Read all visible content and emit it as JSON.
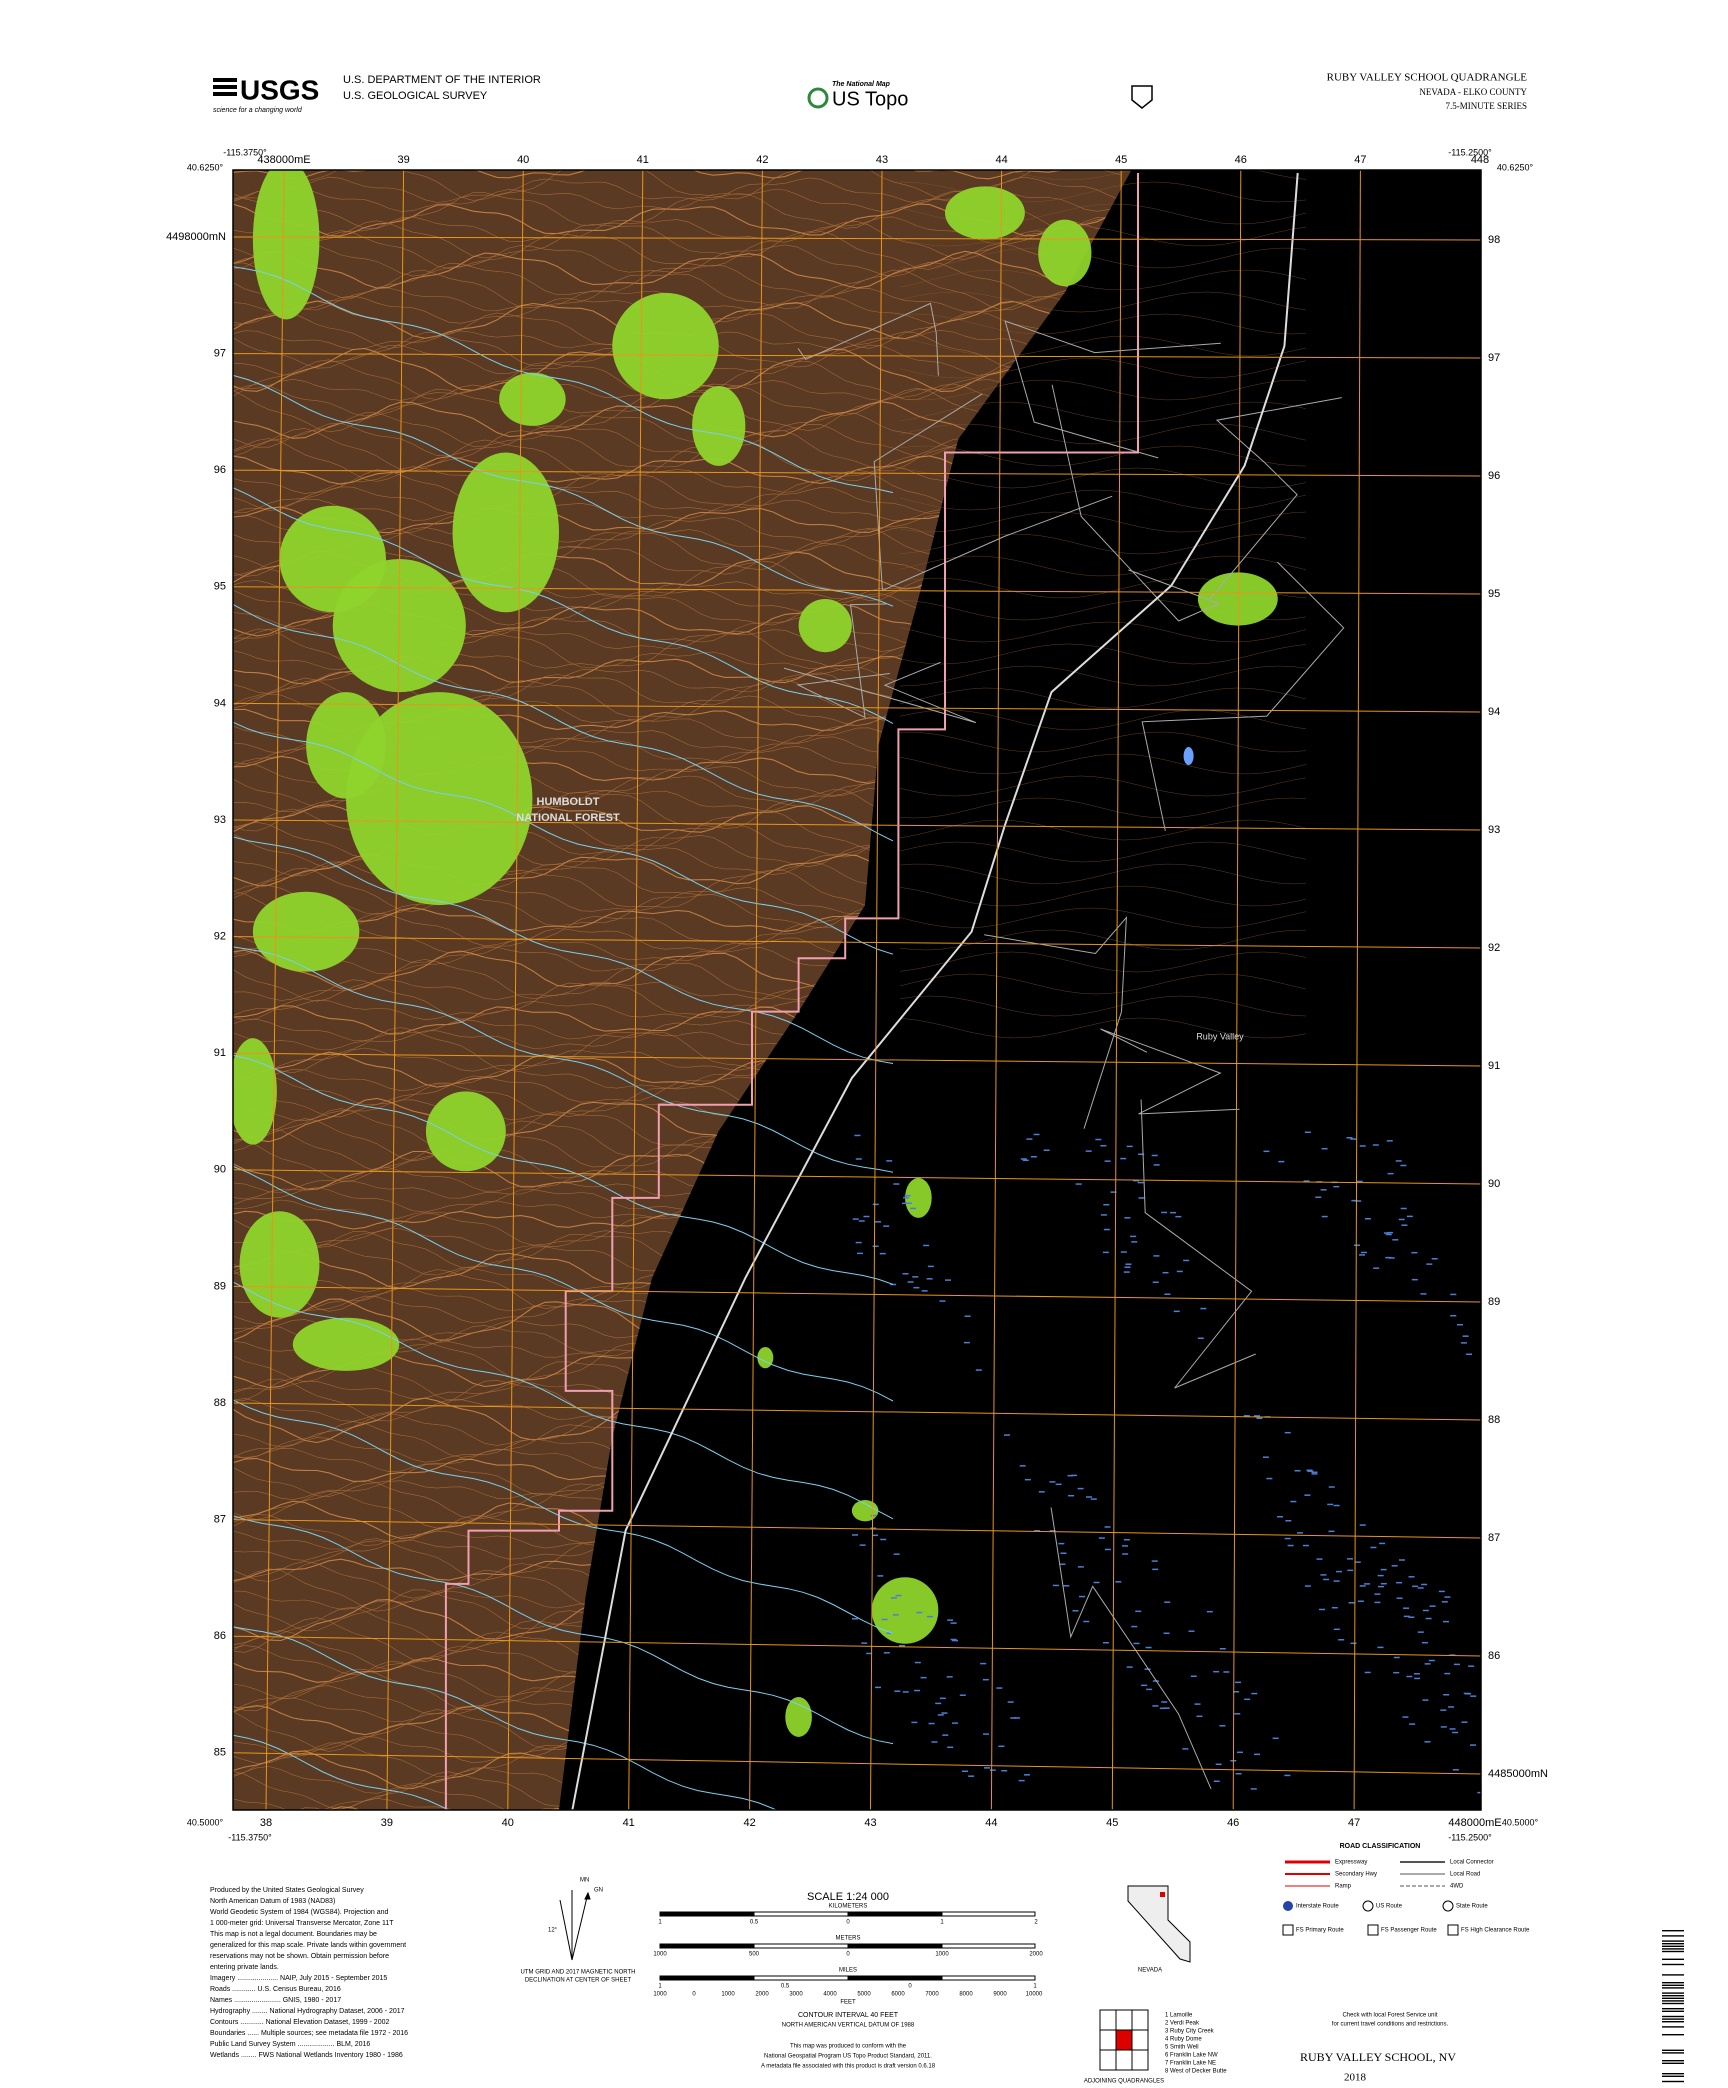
{
  "header": {
    "logo": "USGS",
    "logo_tagline": "science for a changing world",
    "agency_line1": "U.S. DEPARTMENT OF THE INTERIOR",
    "agency_line2": "U.S. GEOLOGICAL SURVEY",
    "product_brand": "The National Map",
    "product_name": "US Topo",
    "quad_title": "RUBY VALLEY SCHOOL QUADRANGLE",
    "state_county": "NEVADA - ELKO COUNTY",
    "series": "7.5-MINUTE SERIES"
  },
  "corners": {
    "top_left_lon": "-115.3750°",
    "top_left_lat": "40.6250°",
    "top_right_lon": "-115.2500°",
    "top_right_lat": "40.6250°",
    "bottom_left_lat": "40.5000°",
    "bottom_left_lon": "-115.3750°",
    "bottom_right_lat": "40.5000°",
    "bottom_right_lon": "-115.2500°"
  },
  "grid": {
    "top": [
      "438000mE",
      "39",
      "40",
      "41",
      "42",
      "43",
      "44",
      "45",
      "46",
      "47",
      "448"
    ],
    "bottom": [
      "38",
      "39",
      "40",
      "41",
      "42",
      "43",
      "44",
      "45",
      "46",
      "47",
      "448000mE"
    ],
    "left": [
      "4498000mN",
      "97",
      "96",
      "95",
      "94",
      "93",
      "92",
      "91",
      "90",
      "89",
      "88",
      "87",
      "86",
      "85"
    ],
    "right": [
      "98",
      "97",
      "96",
      "95",
      "94",
      "93",
      "92",
      "91",
      "90",
      "89",
      "88",
      "87",
      "86",
      "4485000mN"
    ]
  },
  "map_labels": [
    "HUMBOLDT",
    "NATIONAL FOREST",
    "Ruby Valley"
  ],
  "footer": {
    "producer_lines": [
      "Produced by the United States Geological Survey",
      "North American Datum of 1983 (NAD83)",
      "World Geodetic System of 1984 (WGS84). Projection and",
      "1 000-meter grid: Universal Transverse Mercator, Zone 11T",
      "This map is not a legal document. Boundaries may be",
      "generalized for this map scale. Private lands within government",
      "reservations may not be shown. Obtain permission before",
      "entering private lands.",
      "Imagery ..................... NAIP, July 2015 - September 2015",
      "Roads ............ U.S. Census Bureau, 2016",
      "Names ........................ GNIS, 1980 - 2017",
      "Hydrography ........ National Hydrography Dataset, 2006 - 2017",
      "Contours ............ National Elevation Dataset, 1999 - 2002",
      "Boundaries ...... Multiple sources; see metadata file 1972 - 2016",
      "Public Land Survey System ................... BLM, 2016",
      "Wetlands ........ FWS National Wetlands Inventory 1980 - 1986"
    ],
    "compass": [
      "GN",
      "MN",
      "12°",
      "UTM GRID AND 2017 MAGNETIC NORTH",
      "DECLINATION AT CENTER OF SHEET"
    ],
    "scale": "SCALE 1:24 000",
    "units": [
      "KILOMETERS",
      "METERS",
      "MILES",
      "FEET"
    ],
    "km_ticks": [
      "1",
      "0.5",
      "0",
      "1",
      "2"
    ],
    "m_ticks": [
      "1000",
      "500",
      "0",
      "1000",
      "2000"
    ],
    "mi_ticks": [
      "1",
      "0.5",
      "0",
      "1"
    ],
    "ft_ticks": [
      "1000",
      "0",
      "1000",
      "2000",
      "3000",
      "4000",
      "5000",
      "6000",
      "7000",
      "8000",
      "9000",
      "10000"
    ],
    "contour": "CONTOUR INTERVAL 40 FEET",
    "datum": "NORTH AMERICAN VERTICAL DATUM OF 1988",
    "conformance": [
      "This map was produced to conform with the",
      "National Geospatial Program US Topo Product Standard, 2011.",
      "A metadata file associated with this product is draft version 0.6.18"
    ],
    "state_label": "NEVADA",
    "adjoining_title": "ADJOINING QUADRANGLES",
    "adjoining": [
      "1 Lamoille",
      "2 Verdi Peak",
      "3 Ruby City Creek",
      "4 Ruby Dome",
      "5 Smith Well",
      "6 Franklin Lake NW",
      "7 Franklin Lake NE",
      "8 West of Decker Butte"
    ],
    "road_title": "ROAD CLASSIFICATION",
    "roads": [
      "Expressway",
      "Secondary Hwy",
      "Ramp",
      "Local Connector",
      "Local Road",
      "4WD",
      "Interstate Route",
      "US Route",
      "State Route",
      "FS Primary Route",
      "FS Passenger Route",
      "FS High Clearance Route"
    ],
    "travel_note": [
      "Check with local Forest Service unit",
      "for current travel conditions and restrictions."
    ],
    "quad_name": "RUBY VALLEY SCHOOL, NV",
    "year": "2018"
  }
}
